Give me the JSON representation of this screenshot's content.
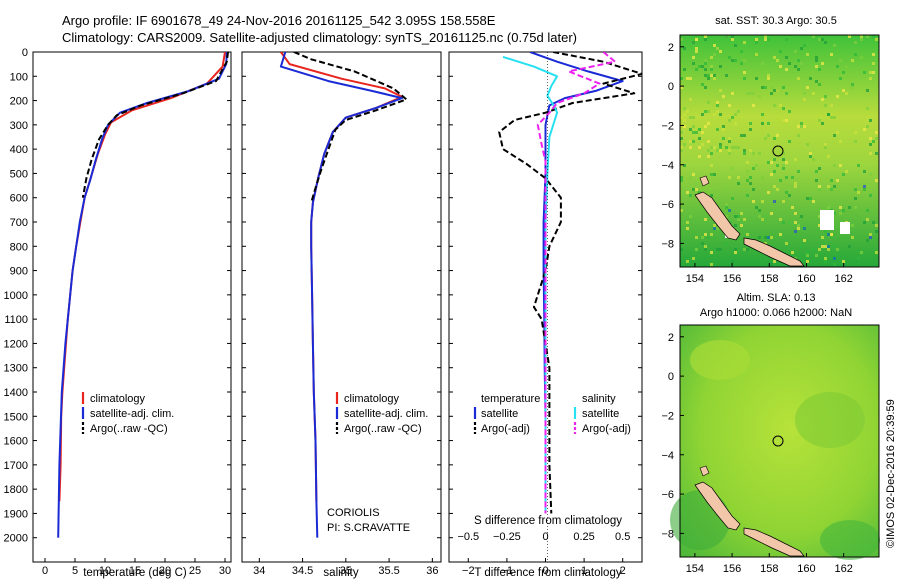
{
  "header": {
    "line1": "Argo profile: IF 6901678_49 24-Nov-2016 20161125_542 3.095S 158.558E",
    "line2": "Climatology: CARS2009. Satellite-adjusted climatology: synTS_20161125.nc (0.75d later)"
  },
  "colors": {
    "climatology": "#e8251f",
    "satellite": "#1a2bd6",
    "argo": "#000000",
    "sal_satellite": "#27e0f0",
    "sal_argo": "#ee22ee"
  },
  "chart_data": [
    {
      "id": "temperature",
      "type": "line",
      "xlabel": "temperature (deg C)",
      "ylabel": "",
      "xlim": [
        -2,
        31
      ],
      "ylim": [
        2100,
        0
      ],
      "xticks": [
        0,
        5,
        10,
        15,
        20,
        25,
        30
      ],
      "yticks": [
        0,
        100,
        200,
        300,
        400,
        500,
        600,
        700,
        800,
        900,
        1000,
        1100,
        1200,
        1300,
        1400,
        1500,
        1600,
        1700,
        1800,
        1900,
        2000
      ],
      "legend": [
        "climatology",
        "satellite-adj. clim.",
        "Argo(..raw -QC)"
      ],
      "series": [
        {
          "name": "climatology",
          "color": "#e8251f",
          "dash": "",
          "points": [
            [
              30.0,
              0
            ],
            [
              29.6,
              60
            ],
            [
              27.0,
              130
            ],
            [
              21.0,
              190
            ],
            [
              14.5,
              240
            ],
            [
              11.0,
              290
            ],
            [
              10.0,
              340
            ],
            [
              8.8,
              420
            ],
            [
              7.6,
              520
            ],
            [
              6.6,
              600
            ],
            [
              5.9,
              700
            ],
            [
              5.2,
              800
            ],
            [
              4.6,
              900
            ],
            [
              4.2,
              1000
            ],
            [
              3.8,
              1100
            ],
            [
              3.5,
              1200
            ],
            [
              3.2,
              1300
            ],
            [
              2.9,
              1400
            ],
            [
              2.7,
              1500
            ],
            [
              2.6,
              1700
            ],
            [
              2.4,
              1850
            ]
          ]
        },
        {
          "name": "satellite-adj. clim.",
          "color": "#1a2bd6",
          "dash": "",
          "points": [
            [
              30.3,
              0
            ],
            [
              30.2,
              50
            ],
            [
              29.0,
              110
            ],
            [
              24.0,
              160
            ],
            [
              17.0,
              210
            ],
            [
              12.5,
              250
            ],
            [
              10.5,
              300
            ],
            [
              9.5,
              360
            ],
            [
              8.5,
              440
            ],
            [
              7.5,
              530
            ],
            [
              6.6,
              600
            ],
            [
              5.8,
              700
            ],
            [
              5.2,
              800
            ],
            [
              4.6,
              900
            ],
            [
              4.2,
              1000
            ],
            [
              3.8,
              1100
            ],
            [
              3.4,
              1200
            ],
            [
              3.1,
              1300
            ],
            [
              2.8,
              1400
            ],
            [
              2.6,
              1550
            ],
            [
              2.4,
              1700
            ],
            [
              2.3,
              1850
            ],
            [
              2.2,
              2000
            ]
          ]
        },
        {
          "name": "Argo(..raw -QC)",
          "color": "#000000",
          "dash": "6,3",
          "points": [
            [
              30.5,
              0
            ],
            [
              30.3,
              40
            ],
            [
              28.5,
              120
            ],
            [
              23.0,
              170
            ],
            [
              16.0,
              220
            ],
            [
              12.0,
              260
            ],
            [
              10.5,
              300
            ],
            [
              9.0,
              360
            ],
            [
              7.8,
              440
            ],
            [
              6.9,
              520
            ],
            [
              6.3,
              600
            ]
          ]
        }
      ]
    },
    {
      "id": "salinity",
      "type": "line",
      "xlabel": "salinity",
      "ylabel": "",
      "xlim": [
        33.8,
        36.1
      ],
      "ylim": [
        2100,
        0
      ],
      "xticks": [
        34,
        34.5,
        35,
        35.5,
        36
      ],
      "legend": [
        "climatology",
        "satellite-adj. clim.",
        "Argo(..raw -QC)"
      ],
      "annotation": [
        "CORIOLIS",
        "PI: S.CRAVATTE"
      ],
      "series": [
        {
          "name": "climatology",
          "color": "#e8251f",
          "dash": "",
          "points": [
            [
              34.25,
              0
            ],
            [
              34.35,
              50
            ],
            [
              34.95,
              110
            ],
            [
              35.45,
              150
            ],
            [
              35.65,
              185
            ],
            [
              35.35,
              230
            ],
            [
              35.0,
              270
            ],
            [
              34.85,
              330
            ],
            [
              34.75,
              420
            ],
            [
              34.68,
              520
            ],
            [
              34.62,
              620
            ],
            [
              34.6,
              700
            ],
            [
              34.6,
              800
            ],
            [
              34.61,
              1000
            ],
            [
              34.62,
              1200
            ],
            [
              34.63,
              1400
            ],
            [
              34.65,
              1600
            ],
            [
              34.66,
              1850
            ]
          ]
        },
        {
          "name": "satellite-adj. clim.",
          "color": "#1a2bd6",
          "dash": "",
          "points": [
            [
              34.3,
              0
            ],
            [
              34.25,
              60
            ],
            [
              34.8,
              120
            ],
            [
              35.3,
              160
            ],
            [
              35.65,
              190
            ],
            [
              35.35,
              230
            ],
            [
              35.0,
              270
            ],
            [
              34.85,
              330
            ],
            [
              34.75,
              420
            ],
            [
              34.68,
              520
            ],
            [
              34.62,
              620
            ],
            [
              34.6,
              700
            ],
            [
              34.6,
              800
            ],
            [
              34.61,
              1000
            ],
            [
              34.62,
              1200
            ],
            [
              34.63,
              1400
            ],
            [
              34.65,
              1600
            ],
            [
              34.66,
              1850
            ],
            [
              34.67,
              2000
            ]
          ]
        },
        {
          "name": "Argo(..raw -QC)",
          "color": "#000000",
          "dash": "6,3",
          "points": [
            [
              34.4,
              0
            ],
            [
              34.6,
              30
            ],
            [
              35.1,
              80
            ],
            [
              35.55,
              150
            ],
            [
              35.7,
              195
            ],
            [
              35.35,
              240
            ],
            [
              35.0,
              280
            ],
            [
              34.88,
              320
            ],
            [
              34.8,
              400
            ],
            [
              34.72,
              480
            ],
            [
              34.65,
              560
            ],
            [
              34.6,
              620
            ]
          ]
        }
      ]
    },
    {
      "id": "difference",
      "type": "line",
      "xlabel": "T difference from climatology",
      "xlabel_top": "S difference from climatology",
      "xlim": [
        -2.5,
        2.5
      ],
      "ylim": [
        2100,
        0
      ],
      "xticks": [
        -2,
        -1,
        0,
        1,
        2
      ],
      "xtick_labels": [
        "−2",
        "−1",
        "0",
        "1",
        "2"
      ],
      "sticks": [
        -2,
        -1,
        0,
        1,
        2
      ],
      "stick_labels": [
        "−0.5",
        "−0.25",
        "0",
        "0.25",
        "0.5"
      ],
      "legend_left": [
        "temperature",
        "satellite",
        "Argo(-adj)"
      ],
      "legend_right": [
        "salinity",
        "satellite",
        "Argo(-adj)"
      ],
      "series": [
        {
          "name": "temperature satellite",
          "color": "#1a2bd6",
          "dash": "",
          "points": [
            [
              -0.4,
              0
            ],
            [
              0.3,
              40
            ],
            [
              1.1,
              80
            ],
            [
              2.0,
              120
            ],
            [
              1.3,
              160
            ],
            [
              0.5,
              190
            ],
            [
              0.1,
              220
            ],
            [
              0.0,
              300
            ],
            [
              0.0,
              500
            ],
            [
              -0.05,
              700
            ],
            [
              -0.05,
              900
            ],
            [
              -0.03,
              1100
            ],
            [
              -0.02,
              1300
            ],
            [
              0.0,
              1500
            ],
            [
              0.0,
              1700
            ],
            [
              0.0,
              1850
            ]
          ]
        },
        {
          "name": "temperature Argo(-adj)",
          "color": "#000000",
          "dash": "6,3",
          "points": [
            [
              0.2,
              0
            ],
            [
              1.5,
              40
            ],
            [
              2.5,
              90
            ],
            [
              1.5,
              130
            ],
            [
              2.3,
              170
            ],
            [
              0.7,
              210
            ],
            [
              0.0,
              250
            ],
            [
              -0.8,
              280
            ],
            [
              -1.2,
              330
            ],
            [
              -1.1,
              400
            ],
            [
              -0.5,
              460
            ],
            [
              0.0,
              520
            ],
            [
              0.4,
              600
            ],
            [
              0.4,
              700
            ],
            [
              0.1,
              800
            ],
            [
              0.0,
              900
            ],
            [
              -0.2,
              1000
            ],
            [
              -0.3,
              1050
            ],
            [
              -0.1,
              1100
            ],
            [
              0.0,
              1200
            ],
            [
              0.1,
              1300
            ],
            [
              0.1,
              1500
            ],
            [
              0.1,
              1700
            ],
            [
              0.15,
              1900
            ]
          ]
        },
        {
          "name": "salinity satellite",
          "color": "#27e0f0",
          "dash": "",
          "points": [
            [
              -1.1,
              20
            ],
            [
              -0.3,
              60
            ],
            [
              0.3,
              100
            ],
            [
              0.15,
              140
            ],
            [
              0.05,
              180
            ],
            [
              0.25,
              230
            ],
            [
              0.3,
              250
            ],
            [
              0.1,
              350
            ],
            [
              0.05,
              500
            ],
            [
              0.0,
              700
            ],
            [
              0.0,
              900
            ],
            [
              0.0,
              1100
            ],
            [
              0.0,
              1300
            ],
            [
              0.0,
              1500
            ],
            [
              0.0,
              1700
            ],
            [
              0.0,
              1900
            ]
          ]
        },
        {
          "name": "salinity Argo(-adj)",
          "color": "#ee22ee",
          "dash": "6,3",
          "points": [
            [
              1.5,
              0
            ],
            [
              1.8,
              40
            ],
            [
              0.6,
              80
            ],
            [
              1.4,
              130
            ],
            [
              1.0,
              170
            ],
            [
              0.3,
              210
            ],
            [
              0.1,
              250
            ],
            [
              -0.2,
              300
            ],
            [
              -0.1,
              380
            ],
            [
              0.0,
              450
            ],
            [
              0.0,
              500
            ],
            [
              0.0,
              700
            ],
            [
              0.0,
              900
            ],
            [
              0.0,
              1100
            ],
            [
              0.0,
              1300
            ],
            [
              0.0,
              1500
            ],
            [
              0.0,
              1700
            ],
            [
              0.0,
              1900
            ]
          ]
        }
      ]
    }
  ],
  "maps": [
    {
      "id": "sst-map",
      "title": "sat. SST: 30.3  Argo: 30.5",
      "xticks": [
        154,
        156,
        158,
        160,
        162
      ],
      "yticks": [
        2,
        0,
        -2,
        -4,
        -6,
        -8
      ],
      "xlim": [
        153.2,
        163.9
      ],
      "ylim": [
        -9.2,
        2.6
      ],
      "argo_location": [
        158.558,
        -3.095
      ]
    },
    {
      "id": "sla-map",
      "title1": "Altim. SLA: 0.13",
      "title2": "Argo h1000: 0.066  h2000: NaN",
      "xticks": [
        154,
        156,
        158,
        160,
        162
      ],
      "yticks": [
        2,
        0,
        -2,
        -4,
        -6,
        -8
      ],
      "xlim": [
        153.2,
        163.9
      ],
      "ylim": [
        -9.2,
        2.6
      ],
      "argo_location": [
        158.558,
        -3.095
      ]
    }
  ],
  "credit": "©IMOS 02-Dec-2016 20:39:59"
}
